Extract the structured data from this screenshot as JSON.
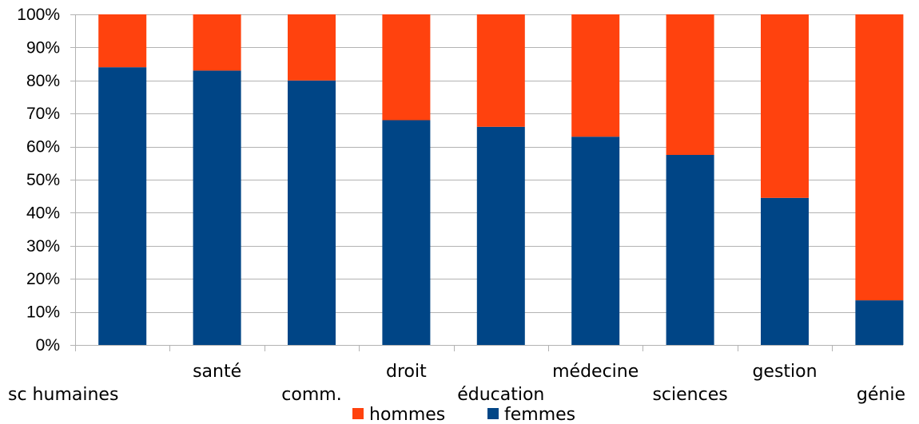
{
  "chart_data": {
    "type": "bar",
    "stacked": true,
    "categories": [
      "sc humaines",
      "santé",
      "comm.",
      "droit",
      "éducation",
      "médecine",
      "sciences",
      "gestion",
      "génie"
    ],
    "series": [
      {
        "name": "femmes",
        "color": "#004586",
        "values": [
          84,
          83,
          80,
          68,
          66,
          63,
          57.5,
          44.5,
          13.5
        ]
      },
      {
        "name": "hommes",
        "color": "#ff420e",
        "values": [
          16,
          17,
          20,
          32,
          34,
          37,
          42.5,
          55.5,
          86.5
        ]
      }
    ],
    "yticks": [
      "0%",
      "10%",
      "20%",
      "30%",
      "40%",
      "50%",
      "60%",
      "70%",
      "80%",
      "90%",
      "100%"
    ],
    "ylim": [
      0,
      100
    ],
    "grid": true,
    "legend": {
      "position": "bottom",
      "entries": [
        "hommes",
        "femmes"
      ]
    }
  }
}
